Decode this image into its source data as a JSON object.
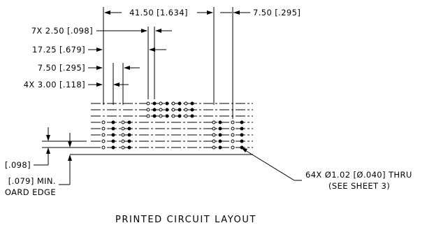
{
  "drawing": {
    "title": "PRINTED CIRCUIT LAYOUT",
    "dimensions": {
      "overall_width": "41.50 [1.634]",
      "right_offset": "7.50 [.295]",
      "pitch": "7X 2.50 [.098]",
      "offset_a": "17.25 [.679]",
      "offset_b": "7.50 [.295]",
      "hole_spacing": "4X 3.00 [.118]",
      "vertical_pitch": "[.098]",
      "board_edge_line1": "[.079] MIN.",
      "board_edge_line2": "OARD EDGE"
    },
    "hole_callout": {
      "line1": "64X Ø1.02 [Ø.040] THRU",
      "line2": "(SEE SHEET 3)"
    }
  }
}
